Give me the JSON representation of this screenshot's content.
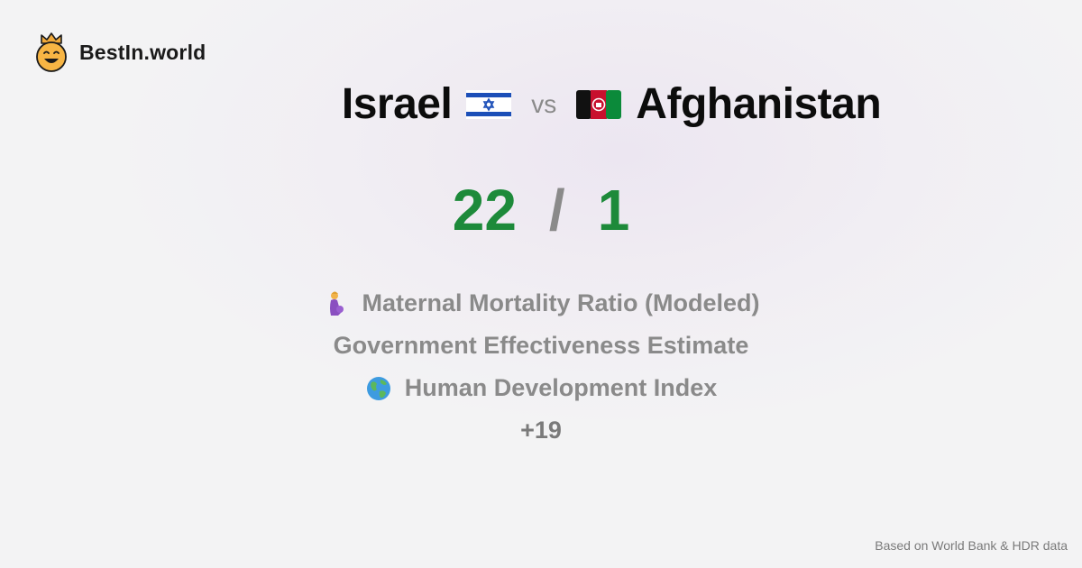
{
  "brand": {
    "name": "BestIn.world",
    "logo_icon": "crown-smiley-icon"
  },
  "comparison": {
    "left_country": "Israel",
    "right_country": "Afghanistan",
    "vs_label": "vs",
    "left_flag_icon": "israel-flag-icon",
    "right_flag_icon": "afghanistan-flag-icon"
  },
  "score": {
    "left": "22",
    "separator": "/",
    "right": "1"
  },
  "metrics": [
    {
      "label": "Maternal Mortality Ratio (Modeled)",
      "icon": "pregnant-woman-icon"
    },
    {
      "label": "Government Effectiveness Estimate",
      "icon": ""
    },
    {
      "label": "Human Development Index",
      "icon": "globe-icon"
    }
  ],
  "more_label": "+19",
  "footer": {
    "source": "Based on World Bank & HDR data"
  },
  "colors": {
    "score": "#1d8a3a",
    "muted": "#8a8a8a",
    "title": "#0c0c0c"
  }
}
